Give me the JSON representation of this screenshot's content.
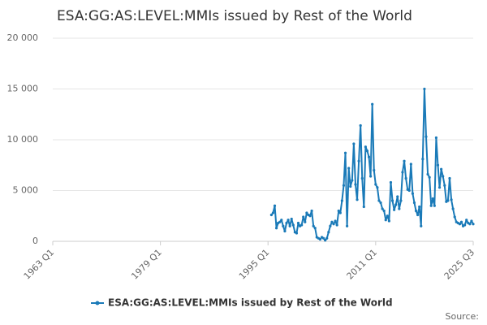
{
  "chart_data": {
    "type": "line",
    "title": "ESA:GG:AS:LEVEL:MMIs issued by Rest of the World",
    "source": "Source:",
    "x": [
      "1995 Q3",
      "1995 Q4",
      "1996 Q1",
      "1996 Q2",
      "1996 Q3",
      "1996 Q4",
      "1997 Q1",
      "1997 Q2",
      "1997 Q3",
      "1997 Q4",
      "1998 Q1",
      "1998 Q2",
      "1998 Q3",
      "1998 Q4",
      "1999 Q1",
      "1999 Q2",
      "1999 Q3",
      "1999 Q4",
      "2000 Q1",
      "2000 Q2",
      "2000 Q3",
      "2000 Q4",
      "2001 Q1",
      "2001 Q2",
      "2001 Q3",
      "2001 Q4",
      "2002 Q1",
      "2002 Q2",
      "2002 Q3",
      "2002 Q4",
      "2003 Q1",
      "2003 Q2",
      "2003 Q3",
      "2003 Q4",
      "2004 Q1",
      "2004 Q2",
      "2004 Q3",
      "2004 Q4",
      "2005 Q1",
      "2005 Q2",
      "2005 Q3",
      "2005 Q4",
      "2006 Q1",
      "2006 Q2",
      "2006 Q3",
      "2006 Q4",
      "2007 Q1",
      "2007 Q2",
      "2007 Q3",
      "2007 Q4",
      "2008 Q1",
      "2008 Q2",
      "2008 Q3",
      "2008 Q4",
      "2009 Q1",
      "2009 Q2",
      "2009 Q3",
      "2009 Q4",
      "2010 Q1",
      "2010 Q2",
      "2010 Q3",
      "2010 Q4",
      "2011 Q1",
      "2011 Q2",
      "2011 Q3",
      "2011 Q4",
      "2012 Q1",
      "2012 Q2",
      "2012 Q3",
      "2012 Q4",
      "2013 Q1",
      "2013 Q2",
      "2013 Q3",
      "2013 Q4",
      "2014 Q1",
      "2014 Q2",
      "2014 Q3",
      "2014 Q4",
      "2015 Q1",
      "2015 Q2",
      "2015 Q3",
      "2015 Q4",
      "2016 Q1",
      "2016 Q2",
      "2016 Q3",
      "2016 Q4",
      "2017 Q1",
      "2017 Q2",
      "2017 Q3",
      "2017 Q4",
      "2018 Q1",
      "2018 Q2",
      "2018 Q3",
      "2018 Q4",
      "2019 Q1",
      "2019 Q2",
      "2019 Q3",
      "2019 Q4",
      "2020 Q1",
      "2020 Q2",
      "2020 Q3",
      "2020 Q4",
      "2021 Q1",
      "2021 Q2",
      "2021 Q3",
      "2021 Q4",
      "2022 Q1",
      "2022 Q2",
      "2022 Q3",
      "2022 Q4",
      "2023 Q1",
      "2023 Q2",
      "2023 Q3",
      "2023 Q4",
      "2024 Q1",
      "2024 Q2",
      "2024 Q3",
      "2024 Q4",
      "2025 Q1",
      "2025 Q2",
      "2025 Q3"
    ],
    "series": [
      {
        "name": "ESA:GG:AS:LEVEL:MMIs issued by Rest of the World",
        "color": "#1a7ab8",
        "values": [
          2600,
          2800,
          3500,
          1300,
          1800,
          1900,
          2100,
          1500,
          1000,
          1800,
          2100,
          1500,
          2200,
          1600,
          900,
          800,
          1800,
          1500,
          1600,
          2400,
          1900,
          2800,
          2600,
          2500,
          3000,
          1500,
          1300,
          400,
          300,
          200,
          400,
          300,
          100,
          300,
          900,
          1500,
          1900,
          1700,
          2000,
          1600,
          3000,
          2800,
          4000,
          5500,
          8700,
          1500,
          7200,
          5400,
          6000,
          9600,
          5600,
          4100,
          7900,
          11400,
          6200,
          3400,
          9300,
          8900,
          8300,
          6400,
          13500,
          7000,
          5600,
          5300,
          4000,
          3800,
          3200,
          3000,
          2100,
          2500,
          2000,
          5800,
          4000,
          3100,
          3600,
          4400,
          3200,
          4000,
          6800,
          7900,
          6200,
          5100,
          5000,
          7600,
          4700,
          3800,
          3000,
          2600,
          3400,
          1500,
          8100,
          15000,
          10300,
          6600,
          6300,
          3500,
          4200,
          3500,
          10200,
          7500,
          5300,
          7100,
          6400,
          5500,
          3900,
          4000,
          6200,
          4100,
          3200,
          2400,
          1900,
          1800,
          1700,
          1900,
          1500,
          1600,
          2100,
          1800,
          1700,
          2000,
          1700
        ]
      }
    ],
    "xlim": [
      "1963 Q1",
      "2025 Q3"
    ],
    "xticks": [
      "1963 Q1",
      "1979 Q1",
      "1995 Q1",
      "2011 Q1",
      "2025 Q3"
    ],
    "ylim": [
      0,
      20000
    ],
    "yticks": [
      0,
      {
        "value": 5000,
        "label": "5 000"
      },
      {
        "value": 10000,
        "label": "10 000"
      },
      {
        "value": 15000,
        "label": "15 000"
      },
      {
        "value": 20000,
        "label": "20 000"
      }
    ],
    "grid": true,
    "legend": "bottom"
  }
}
